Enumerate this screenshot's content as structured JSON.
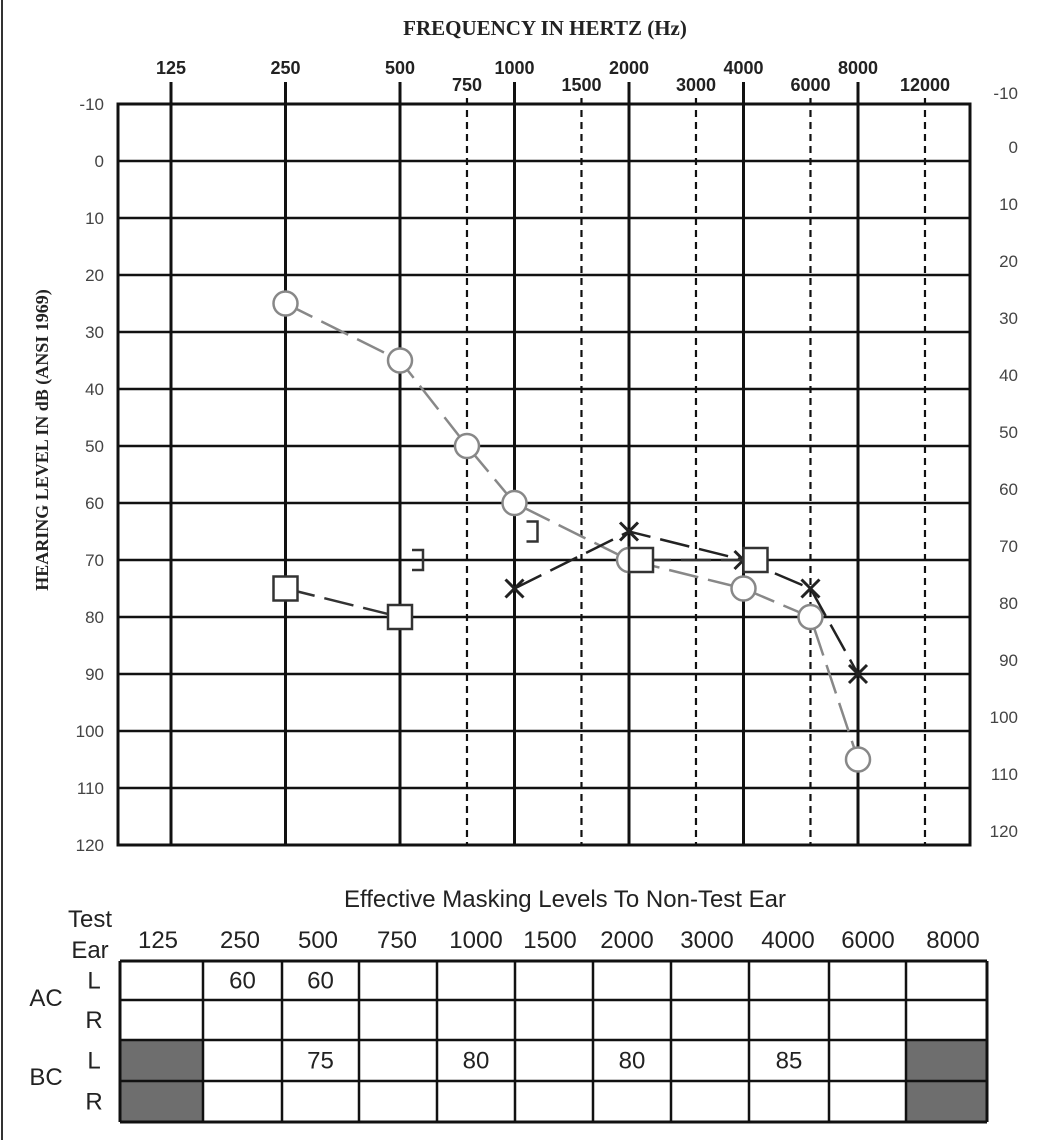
{
  "chart_data": {
    "type": "line",
    "title": "FREQUENCY IN HERTZ (Hz)",
    "ylabel": "HEARING LEVEL IN dB (ANSI 1969)",
    "x_octave_ticks": [
      "125",
      "250",
      "500",
      "1000",
      "2000",
      "4000",
      "8000"
    ],
    "x_interoctave_ticks": [
      "750",
      "1500",
      "3000",
      "6000",
      "12000"
    ],
    "y_ticks": [
      "-10",
      "0",
      "10",
      "20",
      "30",
      "40",
      "50",
      "60",
      "70",
      "80",
      "90",
      "100",
      "110",
      "120"
    ],
    "ylim": [
      -10,
      120
    ],
    "y_inverted": true,
    "x_scale": "log",
    "grid": true,
    "series": [
      {
        "symbol": "circle",
        "color": "#888888",
        "points": [
          {
            "x": 250,
            "y": 25
          },
          {
            "x": 500,
            "y": 35
          },
          {
            "x": 750,
            "y": 50
          },
          {
            "x": 1000,
            "y": 60
          },
          {
            "x": 2000,
            "y": 70
          },
          {
            "x": 4000,
            "y": 75
          },
          {
            "x": 6000,
            "y": 80
          },
          {
            "x": 8000,
            "y": 105
          }
        ]
      },
      {
        "symbol": "x-cross",
        "color": "#222222",
        "points": [
          {
            "x": 1000,
            "y": 75
          },
          {
            "x": 2000,
            "y": 65
          },
          {
            "x": 4000,
            "y": 70
          },
          {
            "x": 6000,
            "y": 75
          },
          {
            "x": 8000,
            "y": 90
          }
        ]
      },
      {
        "symbol": "square",
        "color": "#333333",
        "points": [
          {
            "x": 250,
            "y": 75
          },
          {
            "x": 500,
            "y": 80
          }
        ]
      },
      {
        "symbol": "square",
        "color": "#333333",
        "points": [
          {
            "x": 2000,
            "y": 70
          },
          {
            "x": 4000,
            "y": 70
          }
        ]
      },
      {
        "symbol": "bracket-right",
        "color": "#333333",
        "connect": false,
        "points": [
          {
            "x": 500,
            "y": 70
          },
          {
            "x": 1000,
            "y": 65
          }
        ]
      }
    ]
  },
  "masking_table": {
    "title": "Effective Masking Levels To Non-Test Ear",
    "test_ear_label": "Test Ear",
    "test_ear_line1": "Test",
    "test_ear_line2": "Ear",
    "frequencies": [
      "125",
      "250",
      "500",
      "750",
      "1000",
      "1500",
      "2000",
      "3000",
      "4000",
      "6000",
      "8000"
    ],
    "groups": [
      {
        "label": "AC",
        "rows": [
          {
            "ear": "L",
            "values": [
              "",
              "60",
              "60",
              "",
              "",
              "",
              "",
              "",
              "",
              "",
              ""
            ]
          },
          {
            "ear": "R",
            "values": [
              "",
              "",
              "",
              "",
              "",
              "",
              "",
              "",
              "",
              "",
              ""
            ]
          }
        ]
      },
      {
        "label": "BC",
        "rows": [
          {
            "ear": "L",
            "values": [
              "",
              "",
              "75",
              "",
              "80",
              "",
              "80",
              "",
              "85",
              "",
              ""
            ]
          },
          {
            "ear": "R",
            "values": [
              "",
              "",
              "",
              "",
              "",
              "",
              "",
              "",
              "",
              "",
              ""
            ]
          }
        ]
      }
    ],
    "shaded_cells_note": "125 and 8000 columns shaded for BC rows"
  }
}
